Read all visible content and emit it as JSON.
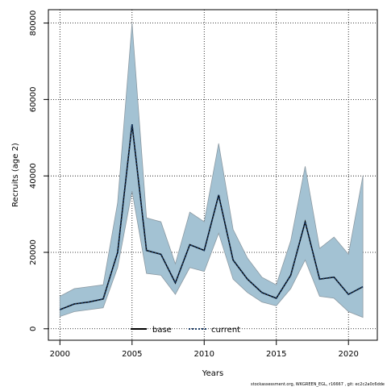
{
  "chart_data": {
    "type": "area",
    "xlabel": "Years",
    "ylabel": "Recruits (age 2)",
    "xlim": [
      1999.2,
      2022.0
    ],
    "ylim": [
      -3000,
      83500
    ],
    "x_ticks": [
      2000,
      2005,
      2010,
      2015,
      2020
    ],
    "y_ticks": [
      0,
      20000,
      40000,
      60000,
      80000
    ],
    "grid": "dotted",
    "years": [
      2000,
      2001,
      2002,
      2003,
      2004,
      2005,
      2006,
      2007,
      2008,
      2009,
      2010,
      2011,
      2012,
      2013,
      2014,
      2015,
      2016,
      2017,
      2018,
      2019,
      2020,
      2021
    ],
    "series": [
      {
        "name": "base",
        "style": "solid",
        "values": [
          5000,
          6500,
          7000,
          7800,
          20000,
          53500,
          20500,
          19500,
          12000,
          22000,
          20500,
          35000,
          18000,
          13000,
          9500,
          8000,
          14000,
          28000,
          13000,
          13500,
          9000,
          11000
        ],
        "lower": [
          3200,
          4500,
          5000,
          5500,
          16000,
          36000,
          14500,
          14000,
          9000,
          16000,
          15000,
          25000,
          13000,
          9500,
          7000,
          6000,
          10500,
          18000,
          8500,
          8000,
          4500,
          3000
        ],
        "upper": [
          8500,
          10500,
          11000,
          11500,
          33000,
          80000,
          29000,
          28000,
          17000,
          30500,
          28000,
          48500,
          26000,
          18500,
          13500,
          11500,
          23000,
          42500,
          21000,
          24000,
          19500,
          40000
        ]
      },
      {
        "name": "current",
        "style": "dotted",
        "values": [
          5000,
          6500,
          7000,
          7800,
          20000,
          53500,
          20500,
          19500,
          12000,
          22000,
          20500,
          35000,
          18000,
          13000,
          9500,
          8000,
          14000,
          28000,
          13000,
          13500,
          9000,
          11000
        ]
      }
    ],
    "band_color": "#a3c2d3",
    "band_edge_color": "#8c9aa3",
    "line_color": "#000000",
    "current_line_color": "#1a3b66",
    "legend": {
      "placement": "bottom-center",
      "entries": [
        "base",
        "current"
      ]
    }
  },
  "footer": {
    "note": "stockassessment.org, WKGREEN_EGL, r16667 , git: ec2c2a0c6dde"
  }
}
